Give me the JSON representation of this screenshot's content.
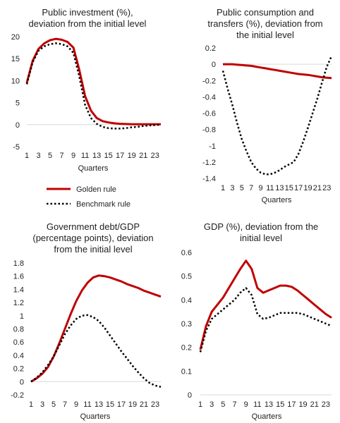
{
  "colors": {
    "golden": "#c00000",
    "benchmark": "#000000",
    "axis": "#d9d9d9"
  },
  "legend": {
    "golden_label": "Golden rule",
    "benchmark_label": "Benchmark rule"
  },
  "chart_data": [
    {
      "type": "line",
      "title_lines": [
        "Public investment (%),",
        "deviation from the initial level"
      ],
      "xlabel": "Quarters",
      "xlim": [
        1,
        24
      ],
      "xticks": [
        1,
        3,
        5,
        7,
        9,
        11,
        13,
        15,
        17,
        19,
        21,
        23
      ],
      "ylim": [
        -5,
        20
      ],
      "yticks": [
        -5,
        0,
        5,
        10,
        15,
        20
      ],
      "ytick_labels": [
        "-5",
        "0",
        "5",
        "10",
        "15",
        "20"
      ],
      "series": [
        {
          "key": "golden",
          "x": [
            1,
            2,
            3,
            4,
            5,
            6,
            7,
            8,
            9,
            10,
            11,
            12,
            13,
            14,
            15,
            16,
            17,
            18,
            19,
            20,
            21,
            22,
            23,
            24
          ],
          "values": [
            9.5,
            14.5,
            17.2,
            18.5,
            19.2,
            19.5,
            19.3,
            18.8,
            17.5,
            12.5,
            6.5,
            3.2,
            1.5,
            0.8,
            0.5,
            0.3,
            0.2,
            0.15,
            0.1,
            0.1,
            0.1,
            0.1,
            0.1,
            0.1
          ]
        },
        {
          "key": "benchmark",
          "x": [
            1,
            2,
            3,
            4,
            5,
            6,
            7,
            8,
            9,
            10,
            11,
            12,
            13,
            14,
            15,
            16,
            17,
            18,
            19,
            20,
            21,
            22,
            23,
            24
          ],
          "values": [
            9.2,
            14.2,
            16.8,
            17.8,
            18.3,
            18.5,
            18.3,
            17.8,
            16.3,
            11,
            4.5,
            1.5,
            0.2,
            -0.5,
            -0.8,
            -0.9,
            -0.9,
            -0.8,
            -0.6,
            -0.5,
            -0.3,
            -0.2,
            -0.1,
            0
          ]
        }
      ]
    },
    {
      "type": "line",
      "title_lines": [
        "Public consumption and",
        "transfers (%), deviation from",
        "the initial level"
      ],
      "xlabel": "Quarters",
      "xlim": [
        1,
        24
      ],
      "xticks": [
        1,
        3,
        5,
        7,
        9,
        11,
        13,
        15,
        17,
        19,
        21,
        23
      ],
      "ylim": [
        -1.4,
        0.2
      ],
      "yticks": [
        0.2,
        0,
        -0.2,
        -0.4,
        -0.6,
        -0.8,
        -1,
        -1.2,
        -1.4
      ],
      "ytick_labels": [
        "0.2",
        "0",
        "-0.2",
        "-0.4",
        "-0.6",
        "-0.8",
        "-1",
        "-1.2",
        "-1.4"
      ],
      "series": [
        {
          "key": "golden",
          "x": [
            1,
            2,
            3,
            4,
            5,
            6,
            7,
            8,
            9,
            10,
            11,
            12,
            13,
            14,
            15,
            16,
            17,
            18,
            19,
            20,
            21,
            22,
            23,
            24
          ],
          "values": [
            0,
            0,
            0,
            -0.005,
            -0.01,
            -0.015,
            -0.02,
            -0.03,
            -0.04,
            -0.05,
            -0.06,
            -0.07,
            -0.08,
            -0.09,
            -0.1,
            -0.11,
            -0.12,
            -0.125,
            -0.13,
            -0.14,
            -0.15,
            -0.16,
            -0.165,
            -0.17
          ]
        },
        {
          "key": "benchmark",
          "x": [
            1,
            2,
            3,
            4,
            5,
            6,
            7,
            8,
            9,
            10,
            11,
            12,
            13,
            14,
            15,
            16,
            17,
            18,
            19,
            20,
            21,
            22,
            23,
            24
          ],
          "values": [
            -0.08,
            -0.3,
            -0.5,
            -0.72,
            -0.92,
            -1.07,
            -1.2,
            -1.28,
            -1.33,
            -1.35,
            -1.35,
            -1.33,
            -1.3,
            -1.26,
            -1.23,
            -1.2,
            -1.1,
            -0.95,
            -0.78,
            -0.6,
            -0.42,
            -0.22,
            -0.03,
            0.1
          ]
        }
      ]
    },
    {
      "type": "line",
      "title_lines": [
        "Government debt/GDP",
        "(percentage points), deviation",
        "from the initial level"
      ],
      "xlabel": "Quarters",
      "xlim": [
        1,
        24
      ],
      "xticks": [
        1,
        3,
        5,
        7,
        9,
        11,
        13,
        15,
        17,
        19,
        21,
        23
      ],
      "ylim": [
        -0.2,
        1.8
      ],
      "yticks": [
        1.8,
        1.6,
        1.4,
        1.2,
        1,
        0.8,
        0.6,
        0.4,
        0.2,
        0,
        -0.2
      ],
      "ytick_labels": [
        "1.8",
        "1.6",
        "1.4",
        "1.2",
        "1",
        "0.8",
        "0.6",
        "0.4",
        "0.2",
        "0",
        "-0.2"
      ],
      "series": [
        {
          "key": "golden",
          "x": [
            1,
            2,
            3,
            4,
            5,
            6,
            7,
            8,
            9,
            10,
            11,
            12,
            13,
            14,
            15,
            16,
            17,
            18,
            19,
            20,
            21,
            22,
            23,
            24
          ],
          "values": [
            0,
            0.05,
            0.12,
            0.22,
            0.38,
            0.58,
            0.8,
            1.02,
            1.22,
            1.38,
            1.5,
            1.58,
            1.61,
            1.6,
            1.58,
            1.55,
            1.52,
            1.48,
            1.45,
            1.42,
            1.38,
            1.35,
            1.32,
            1.29
          ]
        },
        {
          "key": "benchmark",
          "x": [
            1,
            2,
            3,
            4,
            5,
            6,
            7,
            8,
            9,
            10,
            11,
            12,
            13,
            14,
            15,
            16,
            17,
            18,
            19,
            20,
            21,
            22,
            23,
            24
          ],
          "values": [
            0,
            0.06,
            0.14,
            0.25,
            0.38,
            0.55,
            0.72,
            0.85,
            0.95,
            1,
            1.01,
            0.98,
            0.92,
            0.82,
            0.7,
            0.58,
            0.46,
            0.35,
            0.24,
            0.14,
            0.05,
            -0.02,
            -0.06,
            -0.08
          ]
        }
      ]
    },
    {
      "type": "line",
      "title_lines": [
        "GDP (%), deviation from the",
        "initial level"
      ],
      "xlabel": "Quarters",
      "xlim": [
        1,
        24
      ],
      "xticks": [
        1,
        3,
        5,
        7,
        9,
        11,
        13,
        15,
        17,
        19,
        21,
        23
      ],
      "ylim": [
        0,
        0.6
      ],
      "yticks": [
        0.6,
        0.5,
        0.4,
        0.3,
        0.2,
        0.1,
        0
      ],
      "ytick_labels": [
        "0.6",
        "0.5",
        "0.4",
        "0.3",
        "0.2",
        "0.1",
        "0"
      ],
      "series": [
        {
          "key": "golden",
          "x": [
            1,
            2,
            3,
            4,
            5,
            6,
            7,
            8,
            9,
            10,
            11,
            12,
            13,
            14,
            15,
            16,
            17,
            18,
            19,
            20,
            21,
            22,
            23,
            24
          ],
          "values": [
            0.19,
            0.29,
            0.35,
            0.38,
            0.41,
            0.45,
            0.49,
            0.53,
            0.565,
            0.53,
            0.45,
            0.43,
            0.44,
            0.45,
            0.46,
            0.46,
            0.455,
            0.44,
            0.42,
            0.4,
            0.38,
            0.36,
            0.34,
            0.325
          ]
        },
        {
          "key": "benchmark",
          "x": [
            1,
            2,
            3,
            4,
            5,
            6,
            7,
            8,
            9,
            10,
            11,
            12,
            13,
            14,
            15,
            16,
            17,
            18,
            19,
            20,
            21,
            22,
            23,
            24
          ],
          "values": [
            0.18,
            0.27,
            0.32,
            0.34,
            0.36,
            0.38,
            0.4,
            0.43,
            0.45,
            0.42,
            0.34,
            0.32,
            0.325,
            0.335,
            0.345,
            0.345,
            0.345,
            0.345,
            0.34,
            0.33,
            0.32,
            0.31,
            0.3,
            0.29
          ]
        }
      ]
    }
  ]
}
